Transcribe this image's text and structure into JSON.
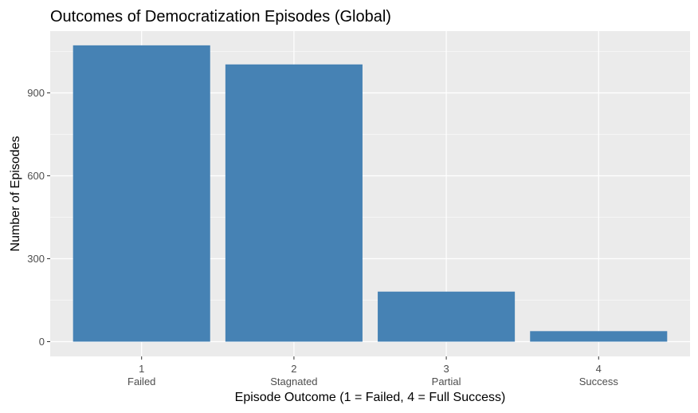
{
  "chart_data": {
    "type": "bar",
    "title": "Outcomes of Democratization Episodes (Global)",
    "xlabel": "Episode Outcome (1 = Failed, 4 = Full Success)",
    "ylabel": "Number of Episodes",
    "categories": [
      "1",
      "2",
      "3",
      "4"
    ],
    "category_sublabels": [
      "Failed",
      "Stagnated",
      "Partial",
      "Success"
    ],
    "values": [
      1072,
      1003,
      181,
      38
    ],
    "ylim": [
      0,
      1125
    ],
    "yticks": [
      0,
      300,
      600,
      900
    ],
    "ytick_labels": [
      "0",
      "300",
      "600",
      "900"
    ],
    "bar_color": "#4682b4",
    "panel_background": "#ebebeb",
    "grid": true
  }
}
